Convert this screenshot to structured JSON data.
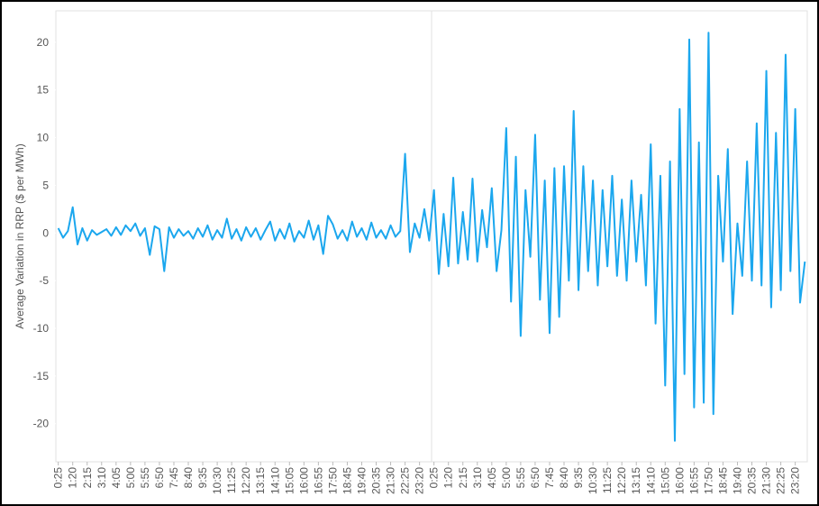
{
  "chart_data": {
    "type": "line",
    "y_label": "Average Variation in RRP ($ per MWh)",
    "color": "#1ba7ee",
    "ylim": [
      -24,
      23.3
    ],
    "yticks": [
      -20,
      -15,
      -10,
      -5,
      0,
      5,
      10,
      15,
      20
    ],
    "grid": false,
    "categories": [
      "0:25",
      null,
      null,
      "1:20",
      null,
      null,
      "2:15",
      null,
      null,
      "3:10",
      null,
      null,
      "4:05",
      null,
      null,
      "5:00",
      null,
      null,
      "5:55",
      null,
      null,
      "6:50",
      null,
      null,
      "7:45",
      null,
      null,
      "8:40",
      null,
      null,
      "9:35",
      null,
      null,
      "10:30",
      null,
      null,
      "11:25",
      null,
      null,
      "12:20",
      null,
      null,
      "13:15",
      null,
      null,
      "14:10",
      null,
      null,
      "15:05",
      null,
      null,
      "16:00",
      null,
      null,
      "16:55",
      null,
      null,
      "17:50",
      null,
      null,
      "18:45",
      null,
      null,
      "19:40",
      null,
      null,
      "20:35",
      null,
      null,
      "21:30",
      null,
      null,
      "22:25",
      null,
      null,
      "23:20",
      null,
      null,
      "0:25",
      null,
      null,
      "1:20",
      null,
      null,
      "2:15",
      null,
      null,
      "3:10",
      null,
      null,
      "4:05",
      null,
      null,
      "5:00",
      null,
      null,
      "5:55",
      null,
      null,
      "6:50",
      null,
      null,
      "7:45",
      null,
      null,
      "8:40",
      null,
      null,
      "9:35",
      null,
      null,
      "10:30",
      null,
      null,
      "11:25",
      null,
      null,
      "12:20",
      null,
      null,
      "13:15",
      null,
      null,
      "14:10",
      null,
      null,
      "15:05",
      null,
      null,
      "16:00",
      null,
      null,
      "16:55",
      null,
      null,
      "17:50",
      null,
      null,
      "18:45",
      null,
      null,
      "19:40",
      null,
      null,
      "20:35",
      null,
      null,
      "21:30",
      null,
      null,
      "22:25",
      null,
      null,
      "23:20",
      null,
      null
    ],
    "values": [
      0.5,
      -0.5,
      0.2,
      2.7,
      -1.2,
      0.5,
      -0.8,
      0.3,
      -0.2,
      0.1,
      0.4,
      -0.3,
      0.6,
      -0.2,
      0.8,
      0.2,
      1.0,
      -0.3,
      0.5,
      -2.3,
      0.7,
      0.4,
      -4.0,
      0.6,
      -0.5,
      0.4,
      -0.3,
      0.2,
      -0.6,
      0.5,
      -0.4,
      0.8,
      -0.7,
      0.3,
      -0.5,
      1.5,
      -0.6,
      0.4,
      -0.8,
      0.6,
      -0.4,
      0.5,
      -0.7,
      0.3,
      1.2,
      -0.8,
      0.4,
      -0.6,
      1.0,
      -0.9,
      0.2,
      -0.5,
      1.3,
      -0.7,
      0.8,
      -2.2,
      1.8,
      0.9,
      -0.6,
      0.3,
      -0.8,
      1.2,
      -0.4,
      0.5,
      -0.7,
      1.1,
      -0.5,
      0.3,
      -0.6,
      0.8,
      -0.4,
      0.2,
      8.3,
      -2.0,
      1.0,
      -0.5,
      2.5,
      -0.8,
      4.5,
      -4.3,
      2.0,
      -3.5,
      5.8,
      -3.2,
      2.2,
      -2.8,
      5.7,
      -3.0,
      2.4,
      -1.5,
      4.7,
      -4.0,
      0.3,
      11.0,
      -7.2,
      8.0,
      -10.8,
      4.5,
      -2.5,
      10.3,
      -7.0,
      5.5,
      -10.5,
      6.8,
      -8.8,
      7.0,
      -5.0,
      12.8,
      -6.0,
      7.0,
      -4.0,
      5.5,
      -5.5,
      4.5,
      -3.5,
      6.0,
      -4.5,
      3.5,
      -5.0,
      5.5,
      -3.0,
      4.0,
      -5.5,
      9.3,
      -9.5,
      6.0,
      -16.0,
      7.5,
      -21.8,
      13.0,
      -14.8,
      20.3,
      -18.3,
      9.5,
      -17.8,
      21.0,
      -19.0,
      6.0,
      -3.0,
      8.8,
      -8.5,
      1.0,
      -4.5,
      7.5,
      -5.0,
      11.5,
      -5.5,
      17.0,
      -7.8,
      10.5,
      -6.0,
      18.7,
      -4.0,
      13.0,
      -7.3,
      -3.0
    ]
  }
}
